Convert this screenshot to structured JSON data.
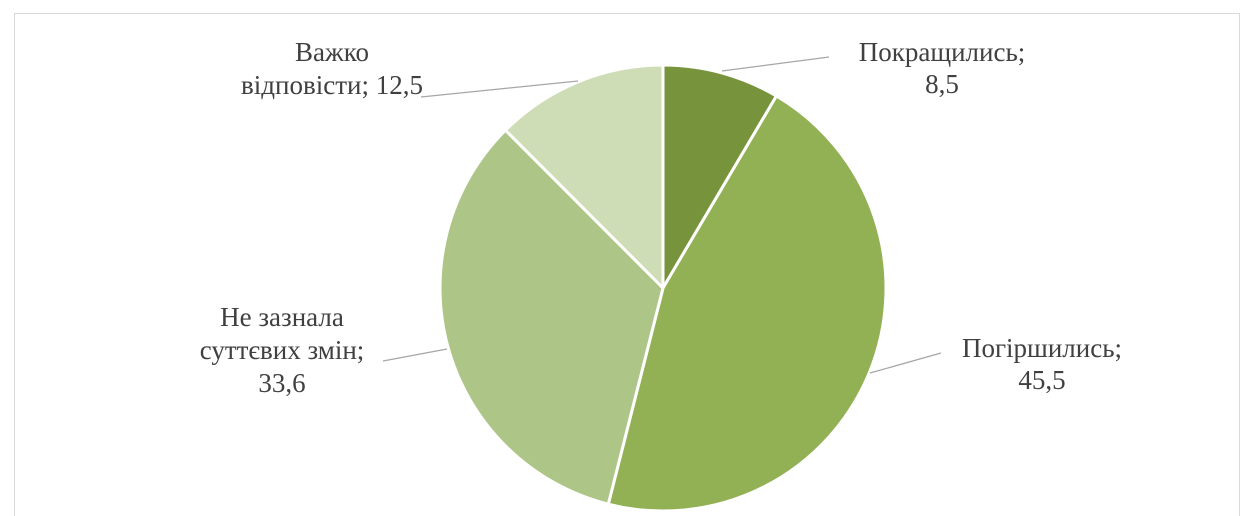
{
  "chart_data": {
    "type": "pie",
    "title": "",
    "legend": "none",
    "slices": [
      {
        "label_lines": [
          "Покращились;",
          "8,5"
        ],
        "value": 8.5,
        "color": "#77933c"
      },
      {
        "label_lines": [
          "Погіршились;",
          "45,5"
        ],
        "value": 45.5,
        "color": "#92b054"
      },
      {
        "label_lines": [
          "Не зазнала",
          "суттєвих змін;",
          "33,6"
        ],
        "value": 33.6,
        "color": "#adc688"
      },
      {
        "label_lines": [
          "Важко",
          "відповісти; 12,5"
        ],
        "value": 12.5,
        "color": "#cfddb7"
      }
    ],
    "leader_line_color": "#a6a6a6",
    "background_color": "#ffffff"
  }
}
